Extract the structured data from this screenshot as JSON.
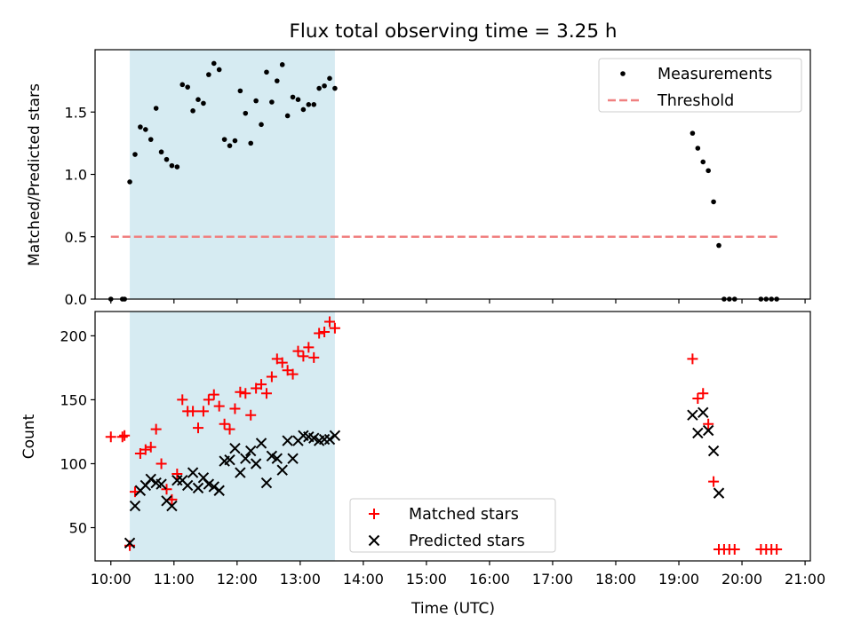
{
  "chart_data": [
    {
      "type": "scatter",
      "title": "Flux total observing time = 3.25 h",
      "ylabel": "Matched/Predicted stars",
      "xlabel": "",
      "xlim": [
        "09:45",
        "21:05"
      ],
      "ylim": [
        0,
        2.0
      ],
      "x_ticks": [
        "10:00",
        "11:00",
        "12:00",
        "13:00",
        "14:00",
        "15:00",
        "16:00",
        "17:00",
        "18:00",
        "19:00",
        "20:00",
        "21:00"
      ],
      "y_ticks": [
        "0.0",
        "0.5",
        "1.0",
        "1.5"
      ],
      "shaded_interval": [
        "10:18",
        "13:33"
      ],
      "legend_position": "upper right",
      "series": [
        {
          "name": "Measurements",
          "marker": "dot",
          "color": "#000000",
          "points": [
            [
              "10:00",
              0.0
            ],
            [
              "10:11",
              0.0
            ],
            [
              "10:13",
              0.0
            ],
            [
              "10:18",
              0.94
            ],
            [
              "10:23",
              1.16
            ],
            [
              "10:28",
              1.38
            ],
            [
              "10:33",
              1.36
            ],
            [
              "10:38",
              1.28
            ],
            [
              "10:43",
              1.53
            ],
            [
              "10:48",
              1.18
            ],
            [
              "10:53",
              1.12
            ],
            [
              "10:58",
              1.07
            ],
            [
              "11:03",
              1.06
            ],
            [
              "11:08",
              1.72
            ],
            [
              "11:13",
              1.7
            ],
            [
              "11:18",
              1.51
            ],
            [
              "11:23",
              1.6
            ],
            [
              "11:28",
              1.57
            ],
            [
              "11:33",
              1.8
            ],
            [
              "11:38",
              1.89
            ],
            [
              "11:43",
              1.84
            ],
            [
              "11:48",
              1.28
            ],
            [
              "11:53",
              1.23
            ],
            [
              "11:58",
              1.27
            ],
            [
              "12:03",
              1.67
            ],
            [
              "12:08",
              1.49
            ],
            [
              "12:13",
              1.25
            ],
            [
              "12:18",
              1.59
            ],
            [
              "12:23",
              1.4
            ],
            [
              "12:28",
              1.82
            ],
            [
              "12:33",
              1.58
            ],
            [
              "12:38",
              1.75
            ],
            [
              "12:43",
              1.88
            ],
            [
              "12:48",
              1.47
            ],
            [
              "12:53",
              1.62
            ],
            [
              "12:58",
              1.6
            ],
            [
              "13:03",
              1.52
            ],
            [
              "13:08",
              1.56
            ],
            [
              "13:13",
              1.56
            ],
            [
              "13:18",
              1.69
            ],
            [
              "13:23",
              1.71
            ],
            [
              "13:28",
              1.77
            ],
            [
              "13:33",
              1.69
            ],
            [
              "19:13",
              1.33
            ],
            [
              "19:18",
              1.21
            ],
            [
              "19:23",
              1.1
            ],
            [
              "19:28",
              1.03
            ],
            [
              "19:33",
              0.78
            ],
            [
              "19:38",
              0.43
            ],
            [
              "19:43",
              0.0
            ],
            [
              "19:48",
              0.0
            ],
            [
              "19:53",
              0.0
            ],
            [
              "20:18",
              0.0
            ],
            [
              "20:23",
              0.0
            ],
            [
              "20:28",
              0.0
            ],
            [
              "20:33",
              0.0
            ]
          ]
        },
        {
          "name": "Threshold",
          "style": "dashed-line",
          "color": "#f08080",
          "points": [
            [
              "10:00",
              0.5
            ],
            [
              "20:35",
              0.5
            ]
          ]
        }
      ]
    },
    {
      "type": "scatter",
      "title": "",
      "ylabel": "Count",
      "xlabel": "Time (UTC)",
      "xlim": [
        "09:45",
        "21:05"
      ],
      "ylim": [
        24,
        219
      ],
      "x_ticks": [
        "10:00",
        "11:00",
        "12:00",
        "13:00",
        "14:00",
        "15:00",
        "16:00",
        "17:00",
        "18:00",
        "19:00",
        "20:00",
        "21:00"
      ],
      "y_ticks": [
        "50",
        "100",
        "150",
        "200"
      ],
      "shaded_interval": [
        "10:18",
        "13:33"
      ],
      "legend_position": "lower center",
      "series": [
        {
          "name": "Matched stars",
          "marker": "plus",
          "color": "#ff0000",
          "points": [
            [
              "10:00",
              121
            ],
            [
              "10:11",
              121
            ],
            [
              "10:13",
              122
            ],
            [
              "10:18",
              36
            ],
            [
              "10:23",
              78
            ],
            [
              "10:28",
              108
            ],
            [
              "10:33",
              111
            ],
            [
              "10:38",
              113
            ],
            [
              "10:43",
              127
            ],
            [
              "10:48",
              100
            ],
            [
              "10:53",
              80
            ],
            [
              "10:58",
              72
            ],
            [
              "11:03",
              92
            ],
            [
              "11:08",
              150
            ],
            [
              "11:13",
              141
            ],
            [
              "11:18",
              141
            ],
            [
              "11:23",
              128
            ],
            [
              "11:28",
              141
            ],
            [
              "11:33",
              150
            ],
            [
              "11:38",
              154
            ],
            [
              "11:43",
              145
            ],
            [
              "11:48",
              131
            ],
            [
              "11:53",
              127
            ],
            [
              "11:58",
              143
            ],
            [
              "12:03",
              156
            ],
            [
              "12:08",
              155
            ],
            [
              "12:13",
              138
            ],
            [
              "12:18",
              159
            ],
            [
              "12:23",
              162
            ],
            [
              "12:28",
              155
            ],
            [
              "12:33",
              168
            ],
            [
              "12:38",
              182
            ],
            [
              "12:43",
              179
            ],
            [
              "12:48",
              173
            ],
            [
              "12:53",
              170
            ],
            [
              "12:58",
              188
            ],
            [
              "13:03",
              184
            ],
            [
              "13:08",
              191
            ],
            [
              "13:13",
              183
            ],
            [
              "13:18",
              202
            ],
            [
              "13:23",
              203
            ],
            [
              "13:28",
              211
            ],
            [
              "13:33",
              206
            ],
            [
              "19:13",
              182
            ],
            [
              "19:18",
              151
            ],
            [
              "19:23",
              155
            ],
            [
              "19:28",
              131
            ],
            [
              "19:33",
              86
            ],
            [
              "19:38",
              33
            ],
            [
              "19:43",
              33
            ],
            [
              "19:48",
              33
            ],
            [
              "19:53",
              33
            ],
            [
              "20:18",
              33
            ],
            [
              "20:23",
              33
            ],
            [
              "20:28",
              33
            ],
            [
              "20:33",
              33
            ]
          ]
        },
        {
          "name": "Predicted stars",
          "marker": "x",
          "color": "#000000",
          "points": [
            [
              "10:18",
              38
            ],
            [
              "10:23",
              67
            ],
            [
              "10:28",
              79
            ],
            [
              "10:33",
              83
            ],
            [
              "10:38",
              88
            ],
            [
              "10:43",
              85
            ],
            [
              "10:48",
              84
            ],
            [
              "10:53",
              71
            ],
            [
              "10:58",
              67
            ],
            [
              "11:03",
              87
            ],
            [
              "11:08",
              87
            ],
            [
              "11:13",
              83
            ],
            [
              "11:18",
              93
            ],
            [
              "11:23",
              81
            ],
            [
              "11:28",
              89
            ],
            [
              "11:33",
              84
            ],
            [
              "11:38",
              82
            ],
            [
              "11:43",
              79
            ],
            [
              "11:48",
              102
            ],
            [
              "11:53",
              103
            ],
            [
              "11:58",
              112
            ],
            [
              "12:03",
              93
            ],
            [
              "12:08",
              104
            ],
            [
              "12:13",
              110
            ],
            [
              "12:18",
              100
            ],
            [
              "12:23",
              116
            ],
            [
              "12:28",
              85
            ],
            [
              "12:33",
              106
            ],
            [
              "12:38",
              104
            ],
            [
              "12:43",
              95
            ],
            [
              "12:48",
              118
            ],
            [
              "12:53",
              104
            ],
            [
              "12:58",
              118
            ],
            [
              "13:03",
              122
            ],
            [
              "13:08",
              121
            ],
            [
              "13:13",
              120
            ],
            [
              "13:18",
              118
            ],
            [
              "13:23",
              119
            ],
            [
              "13:28",
              119
            ],
            [
              "13:33",
              122
            ],
            [
              "19:13",
              138
            ],
            [
              "19:18",
              124
            ],
            [
              "19:23",
              140
            ],
            [
              "19:28",
              126
            ],
            [
              "19:33",
              110
            ],
            [
              "19:38",
              77
            ]
          ]
        }
      ]
    }
  ]
}
